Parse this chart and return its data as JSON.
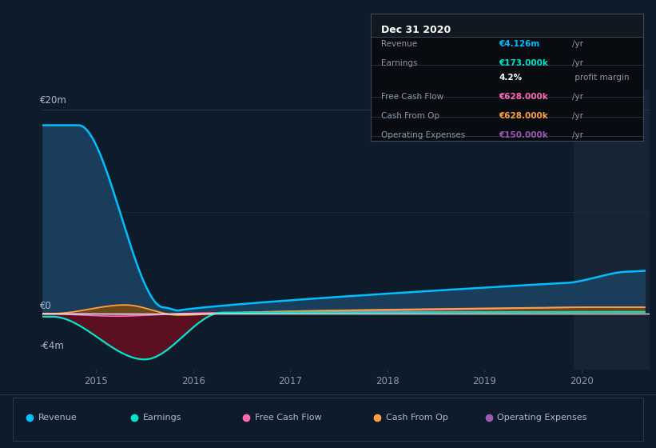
{
  "bg_color": "#0d1b2a",
  "highlight_bg": "#162435",
  "grid_color": "#263a4a",
  "zero_line_color": "#ffffff",
  "ylabel_20m": "€20m",
  "ylabel_0": "€0",
  "ylabel_n4m": "-€4m",
  "x_ticks": [
    2015,
    2016,
    2017,
    2018,
    2019,
    2020
  ],
  "highlight_start": 2019.92,
  "highlight_end": 2020.7,
  "revenue_color": "#00bfff",
  "revenue_fill_color": "#1b3d5c",
  "earnings_color": "#00e5cc",
  "earnings_fill_neg_color": "#5a1020",
  "cfop_color": "#ffa040",
  "cfop_fill_color": "#7a4a10",
  "fcf_color": "#ff69b4",
  "opex_color": "#9b59b6",
  "ylim_min": -5500000,
  "ylim_max": 22000000,
  "xlim_min": 2014.45,
  "xlim_max": 2020.7,
  "legend_items": [
    {
      "label": "Revenue",
      "color": "#00bfff"
    },
    {
      "label": "Earnings",
      "color": "#00e5cc"
    },
    {
      "label": "Free Cash Flow",
      "color": "#ff69b4"
    },
    {
      "label": "Cash From Op",
      "color": "#ffa040"
    },
    {
      "label": "Operating Expenses",
      "color": "#9b59b6"
    }
  ],
  "info_box": {
    "title": "Dec 31 2020",
    "bg_color": "#080c10",
    "border_color": "#3a4a5a",
    "rows": [
      {
        "label": "Revenue",
        "value": "€4.126m",
        "unit": "/yr",
        "value_color": "#00bfff"
      },
      {
        "label": "Earnings",
        "value": "€173.000k",
        "unit": "/yr",
        "value_color": "#00e5cc"
      },
      {
        "label": "",
        "value": "4.2%",
        "unit": " profit margin",
        "value_color": "#ffffff"
      },
      {
        "label": "Free Cash Flow",
        "value": "€628.000k",
        "unit": "/yr",
        "value_color": "#ff69b4"
      },
      {
        "label": "Cash From Op",
        "value": "€628.000k",
        "unit": "/yr",
        "value_color": "#ffa040"
      },
      {
        "label": "Operating Expenses",
        "value": "€150.000k",
        "unit": "/yr",
        "value_color": "#9b59b6"
      }
    ]
  }
}
